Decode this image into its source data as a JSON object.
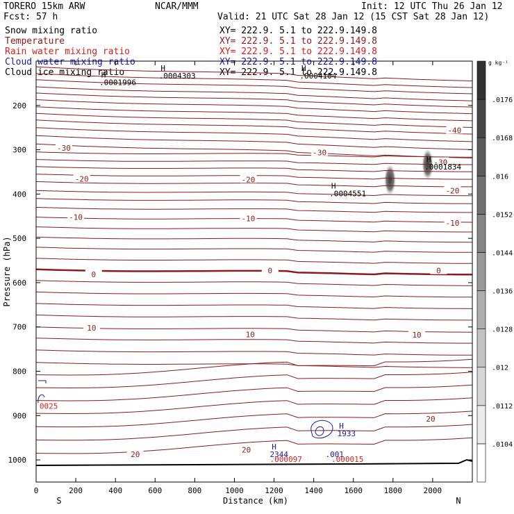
{
  "header": {
    "model": "TORERO  15km ARW",
    "org": "NCAR/MMM",
    "init": "Init: 12 UTC Thu 26 Jan 12",
    "fcst": "Fcst:   57 h",
    "valid": "Valid: 21 UTC Sat 28 Jan 12 (15 CST Sat 28 Jan 12)"
  },
  "fields": [
    {
      "name": "Snow mixing ratio",
      "xy": "XY= 222.9.  5.1 to 222.9.149.8",
      "color": "#000000"
    },
    {
      "name": "Temperature",
      "xy": "XY= 222.9.  5.1 to 222.9.149.8",
      "color": "#8b1a1a"
    },
    {
      "name": "Rain water mixing ratio",
      "xy": "XY= 222.9.  5.1 to 222.9.149.8",
      "color": "#d42020"
    },
    {
      "name": "Cloud water mixing ratio",
      "xy": "XY= 222.9.  5.1 to 222.9.149.8",
      "color": "#1a1aa8"
    },
    {
      "name": "Cloud ice mixing ratio",
      "xy": "XY= 222.9.  5.1 to 222.9.149.8",
      "color": "#000000"
    }
  ],
  "chart_data": {
    "type": "cross-section",
    "xlabel": "Distance (km)",
    "ylabel": "Pressure (hPa)",
    "x_ticks": [
      0,
      200,
      400,
      600,
      800,
      1000,
      1200,
      1400,
      1600,
      1800,
      2000
    ],
    "y_ticks": [
      200,
      300,
      400,
      500,
      600,
      700,
      800,
      900,
      1000
    ],
    "xlim": [
      0,
      2200
    ],
    "ylim": [
      1050,
      100
    ],
    "left_end_label": "S",
    "right_end_label": "N",
    "colorbar": {
      "unit": "g kg⁻¹",
      "ticks": [
        ".0104",
        ".0112",
        ".012",
        ".0128",
        ".0136",
        ".0144",
        ".0152",
        ".016",
        ".0168",
        ".0176"
      ]
    },
    "temperature_isotherm_labels": [
      {
        "text": "-40",
        "x": 2110,
        "p": 256
      },
      {
        "text": "-30",
        "x": 140,
        "p": 296
      },
      {
        "text": "-30",
        "x": 1430,
        "p": 306
      },
      {
        "text": "-30",
        "x": 2040,
        "p": 328
      },
      {
        "text": "-20",
        "x": 230,
        "p": 366
      },
      {
        "text": "-20",
        "x": 1070,
        "p": 367
      },
      {
        "text": "-20",
        "x": 2100,
        "p": 392
      },
      {
        "text": "-10",
        "x": 200,
        "p": 452
      },
      {
        "text": "-10",
        "x": 1070,
        "p": 455
      },
      {
        "text": "-10",
        "x": 2100,
        "p": 465
      },
      {
        "text": "0",
        "x": 290,
        "p": 581
      },
      {
        "text": "0",
        "x": 1180,
        "p": 573
      },
      {
        "text": "0",
        "x": 2030,
        "p": 573
      },
      {
        "text": "10",
        "x": 280,
        "p": 702
      },
      {
        "text": "10",
        "x": 1080,
        "p": 717
      },
      {
        "text": "10",
        "x": 1920,
        "p": 718
      },
      {
        "text": "20",
        "x": 500,
        "p": 987
      },
      {
        "text": "20",
        "x": 1060,
        "p": 977
      },
      {
        "text": "20",
        "x": 1990,
        "p": 907
      }
    ],
    "max_markers": [
      {
        "text": "H",
        "value": ".0001996",
        "x": 340,
        "p": 137,
        "color": "#000000"
      },
      {
        "text": "H",
        "value": ".0004303",
        "x": 640,
        "p": 122,
        "color": "#000000"
      },
      {
        "text": "H",
        "value": ".0004104",
        "x": 1350,
        "p": 122,
        "color": "#000000"
      },
      {
        "text": "H",
        "value": ".0004551",
        "x": 1500,
        "p": 388,
        "color": "#000000"
      },
      {
        "text": "H",
        "value": ".0001834",
        "x": 1980,
        "p": 327,
        "color": "#000000"
      },
      {
        "text": "H",
        "value": "2344",
        "x": 1200,
        "p": 976,
        "color": "#1a1aa8"
      },
      {
        "text": "H",
        "value": "1933",
        "x": 1540,
        "p": 929,
        "color": "#1a1aa8"
      },
      {
        "text": "",
        "value": ".001",
        "x": 1480,
        "p": 976,
        "color": "#1a1aa8"
      },
      {
        "text": "",
        "value": ".000015",
        "x": 1510,
        "p": 987,
        "color": "#d42020"
      },
      {
        "text": "",
        "value": ".000097",
        "x": 1200,
        "p": 987,
        "color": "#d42020"
      },
      {
        "text": "",
        "value": "0025",
        "x": 38,
        "p": 867,
        "color": "#d42020"
      }
    ],
    "snow_cores": [
      {
        "x": 1785,
        "p": 368,
        "intensity": 0.0168
      },
      {
        "x": 1975,
        "p": 333,
        "intensity": 0.0168
      }
    ]
  }
}
